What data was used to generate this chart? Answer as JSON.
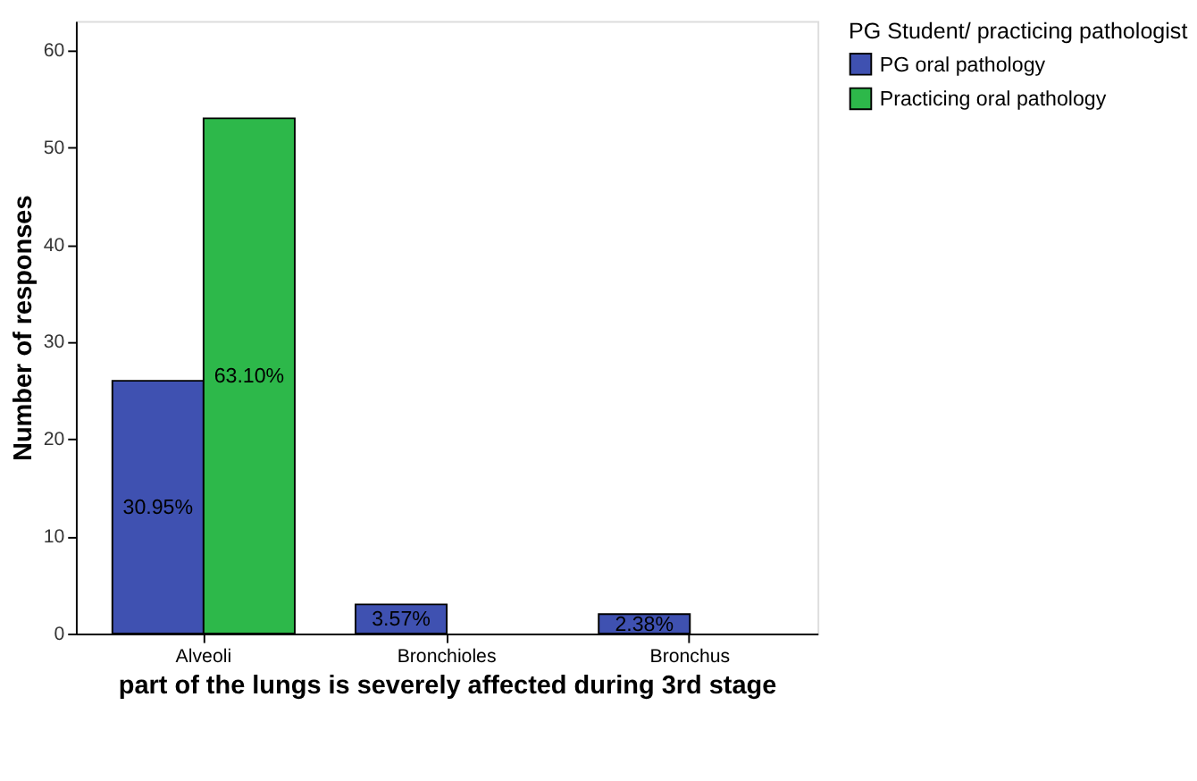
{
  "chart_data": {
    "type": "bar",
    "xlabel": "part of the lungs is severely affected during 3rd stage",
    "ylabel": "Number of responses",
    "legend_title": "PG Student/ practicing pathologist",
    "categories": [
      "Alveoli",
      "Bronchioles",
      "Bronchus"
    ],
    "series": [
      {
        "name": "PG oral pathology",
        "color": "#3f51b1",
        "values": [
          26,
          3,
          2
        ]
      },
      {
        "name": "Practicing oral pathology",
        "color": "#2db84a",
        "values": [
          53,
          null,
          null
        ]
      }
    ],
    "annotations": [
      {
        "text": "30.95%",
        "x": "Alveoli",
        "y": 13
      },
      {
        "text": "63.10%",
        "x": "Alveoli",
        "y": 26.5
      },
      {
        "text": "3.57%",
        "x": "Bronchioles",
        "y": 1.5
      },
      {
        "text": "2.38%",
        "x": "Bronchus",
        "y": 1
      }
    ],
    "ylim": [
      0,
      63
    ],
    "yticks": [
      0,
      10,
      20,
      30,
      40,
      50,
      60
    ],
    "grid": false,
    "legend": "top right"
  }
}
